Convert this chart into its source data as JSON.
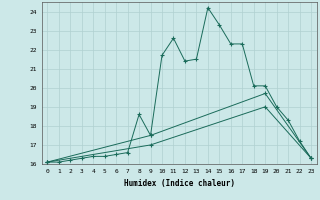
{
  "xlabel": "Humidex (Indice chaleur)",
  "ylabel": "",
  "xlim": [
    -0.5,
    23.5
  ],
  "ylim": [
    16,
    24.5
  ],
  "yticks": [
    16,
    17,
    18,
    19,
    20,
    21,
    22,
    23,
    24
  ],
  "xticks": [
    0,
    1,
    2,
    3,
    4,
    5,
    6,
    7,
    8,
    9,
    10,
    11,
    12,
    13,
    14,
    15,
    16,
    17,
    18,
    19,
    20,
    21,
    22,
    23
  ],
  "bg_color": "#cce8e8",
  "line_color": "#1a6b5a",
  "line1_x": [
    0,
    1,
    2,
    3,
    4,
    5,
    6,
    7,
    8,
    9,
    10,
    11,
    12,
    13,
    14,
    15,
    16,
    17,
    18,
    19,
    20,
    21,
    22,
    23
  ],
  "line1_y": [
    16.1,
    16.1,
    16.2,
    16.3,
    16.4,
    16.4,
    16.5,
    16.6,
    18.6,
    17.5,
    21.7,
    22.6,
    21.4,
    21.5,
    24.2,
    23.3,
    22.3,
    22.3,
    20.1,
    20.1,
    19.0,
    18.3,
    17.2,
    16.3
  ],
  "line2_x": [
    0,
    9,
    19,
    23
  ],
  "line2_y": [
    16.1,
    17.5,
    19.7,
    16.3
  ],
  "line3_x": [
    0,
    9,
    19,
    23
  ],
  "line3_y": [
    16.1,
    17.0,
    19.0,
    16.3
  ]
}
